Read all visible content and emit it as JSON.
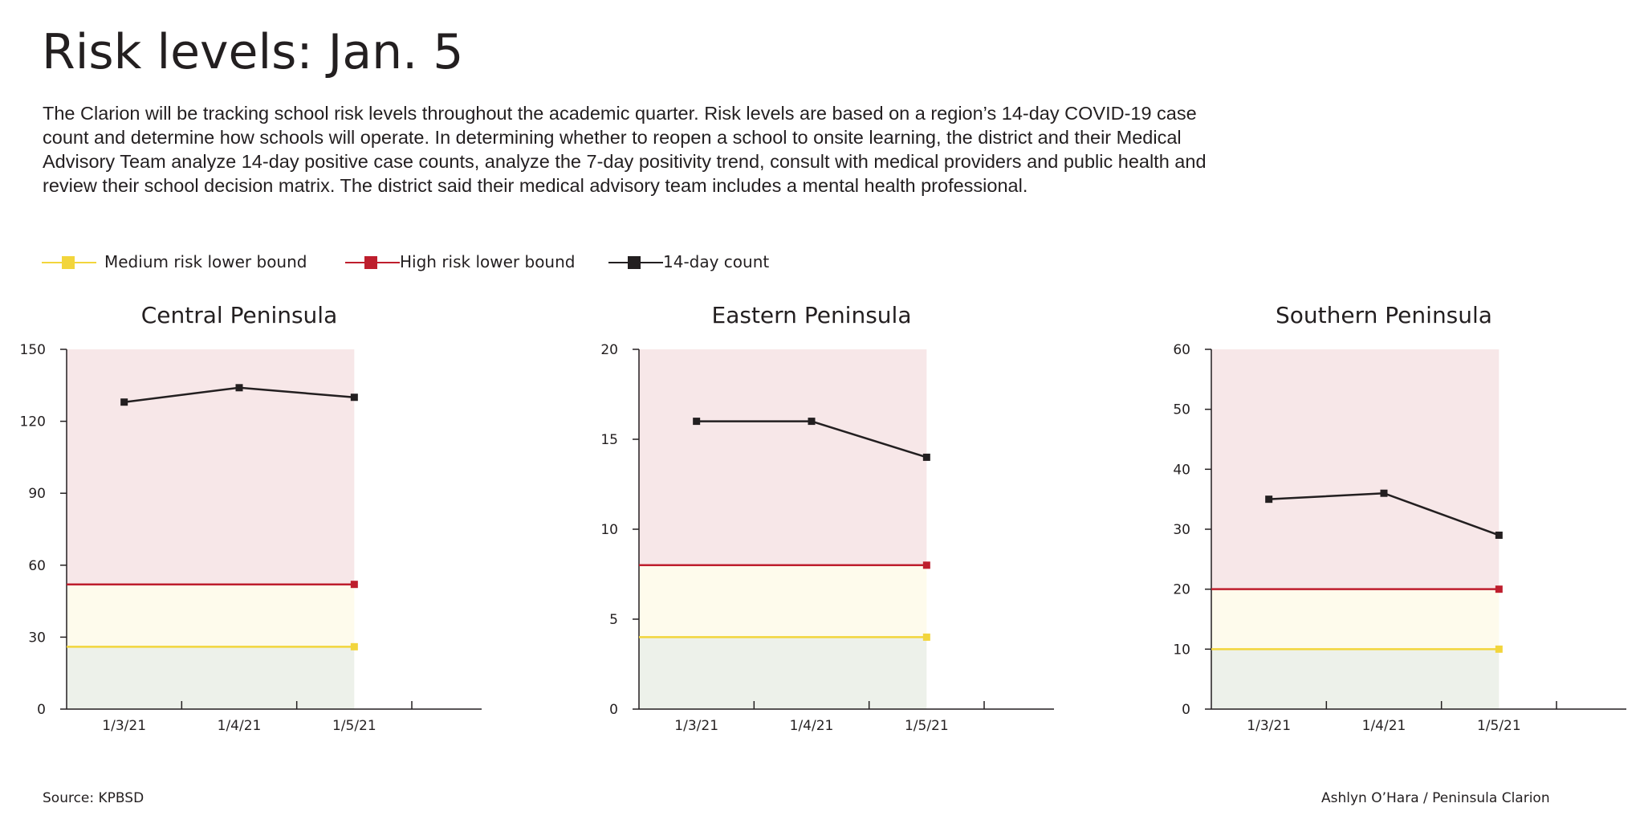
{
  "header": {
    "title": "Risk levels: Jan. 5",
    "description": "The Clarion will be tracking school risk levels throughout the academic quarter. Risk levels are based on a region’s 14-day COVID-19 case count and determine how schools will operate. In determining whether to reopen a school to onsite learning, the district and their Medical Advisory Team analyze 14-day positive case counts, analyze the 7-day positivity trend, consult with medical providers and public health and review their school decision matrix. The district said their medical advisory team includes a mental health professional."
  },
  "legend": {
    "medium": "Medium risk lower bound",
    "high": "High risk lower bound",
    "count": "14-day count"
  },
  "colors": {
    "medium": "#f2d53c",
    "high": "#be1e2d",
    "count": "#231f20",
    "zone_low": "#edf1ea",
    "zone_medium": "#fefbec",
    "zone_high": "#f7e7e8"
  },
  "footer": {
    "source": "Source: KPBSD",
    "credit": "Ashlyn O’Hara / Peninsula Clarion"
  },
  "chart_data": [
    {
      "type": "line",
      "title": "Central Peninsula",
      "categories": [
        "1/3/21",
        "1/4/21",
        "1/5/21"
      ],
      "ylim": [
        0,
        150
      ],
      "yticks": [
        0,
        30,
        60,
        90,
        120,
        150
      ],
      "series": [
        {
          "name": "14-day count",
          "values": [
            128,
            134,
            130
          ]
        },
        {
          "name": "High risk lower bound",
          "values": [
            52,
            52,
            52
          ]
        },
        {
          "name": "Medium risk lower bound",
          "values": [
            26,
            26,
            26
          ]
        }
      ]
    },
    {
      "type": "line",
      "title": "Eastern Peninsula",
      "categories": [
        "1/3/21",
        "1/4/21",
        "1/5/21"
      ],
      "ylim": [
        0,
        20
      ],
      "yticks": [
        0,
        5,
        10,
        15,
        20
      ],
      "series": [
        {
          "name": "14-day count",
          "values": [
            16,
            16,
            14
          ]
        },
        {
          "name": "High risk lower bound",
          "values": [
            8,
            8,
            8
          ]
        },
        {
          "name": "Medium risk lower bound",
          "values": [
            4,
            4,
            4
          ]
        }
      ]
    },
    {
      "type": "line",
      "title": "Southern Peninsula",
      "categories": [
        "1/3/21",
        "1/4/21",
        "1/5/21"
      ],
      "ylim": [
        0,
        60
      ],
      "yticks": [
        0,
        10,
        20,
        30,
        40,
        50,
        60
      ],
      "series": [
        {
          "name": "14-day count",
          "values": [
            35,
            36,
            29
          ]
        },
        {
          "name": "High risk lower bound",
          "values": [
            20,
            20,
            20
          ]
        },
        {
          "name": "Medium risk lower bound",
          "values": [
            10,
            10,
            10
          ]
        }
      ]
    }
  ]
}
